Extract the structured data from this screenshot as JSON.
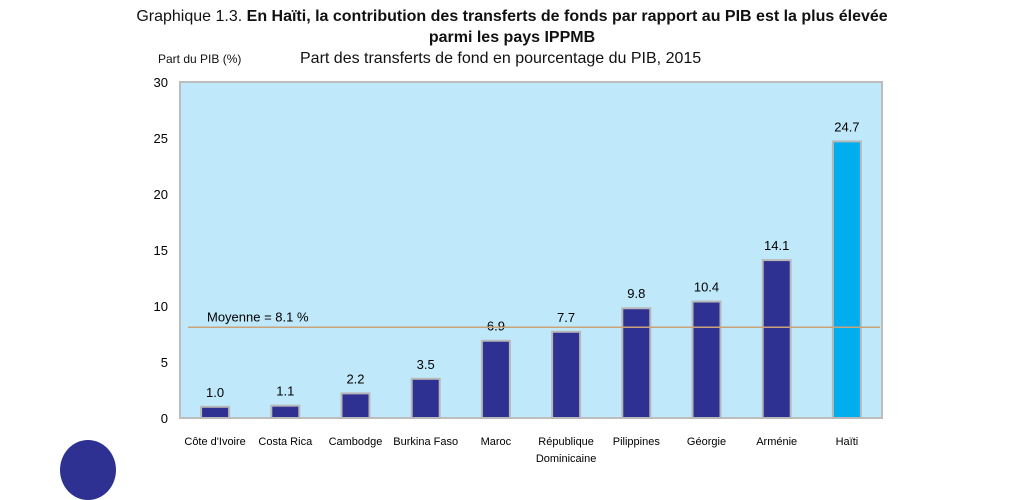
{
  "title_prefix": "Graphique 1.3.",
  "title_bold": "En Haïti, la contribution des transferts de fonds par rapport au PIB est la plus élevée",
  "title_bold_line2": "parmi les pays IPPMB",
  "chart_data": {
    "type": "bar",
    "title": "Part des transferts de fond en pourcentage du PIB, 2015",
    "ylabel": "Part du PIB (%)",
    "ylim": [
      0,
      30
    ],
    "yticks": [
      0,
      5,
      10,
      15,
      20,
      25,
      30
    ],
    "categories": [
      "Côte d'Ivoire",
      "Costa Rica",
      "Cambodge",
      "Burkina Faso",
      "Maroc",
      "République Dominicaine",
      "Pilippines",
      "Géorgie",
      "Arménie",
      "Haïti"
    ],
    "category_lines": [
      [
        "Côte d'Ivoire"
      ],
      [
        "Costa Rica"
      ],
      [
        "Cambodge"
      ],
      [
        "Burkina Faso"
      ],
      [
        "Maroc"
      ],
      [
        "République",
        "Dominicaine"
      ],
      [
        "Pilippines"
      ],
      [
        "Géorgie"
      ],
      [
        "Arménie"
      ],
      [
        "Haïti"
      ]
    ],
    "values": [
      1.0,
      1.1,
      2.2,
      3.5,
      6.9,
      7.7,
      9.8,
      10.4,
      14.1,
      24.7
    ],
    "value_labels": [
      "1.0",
      "1.1",
      "2.2",
      "3.5",
      "6.9",
      "7.7",
      "9.8",
      "10.4",
      "14.1",
      "24.7"
    ],
    "mean": 8.1,
    "mean_label": "Moyenne = 8.1 %",
    "grid": false,
    "colors": {
      "bar": "#2e3192",
      "highlight": "#00aeef",
      "background": "#bfe9fa",
      "mean_line": "#c9a27a",
      "bar_border": "#b8b8b8"
    }
  }
}
